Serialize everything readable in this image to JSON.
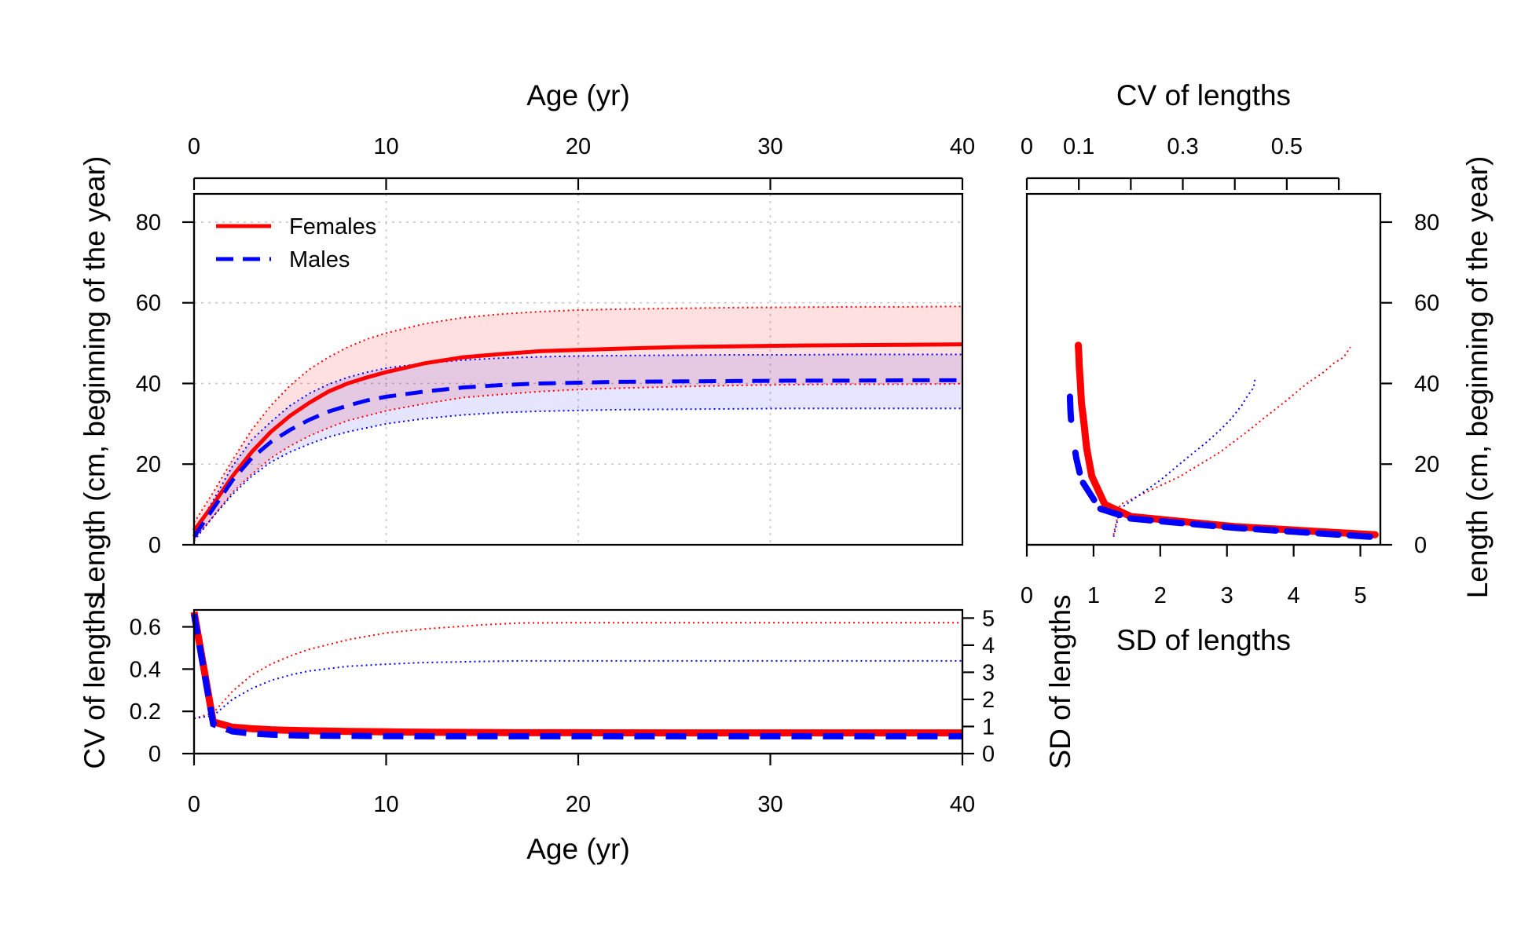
{
  "chart_data": [
    {
      "type": "line",
      "panel": "length-at-age",
      "top_axis_title": "Age (yr)",
      "ylabel": "Length (cm, beginning of the year)",
      "xlim": [
        0,
        40
      ],
      "ylim": [
        0,
        87
      ],
      "xticks": [
        0,
        10,
        20,
        30,
        40
      ],
      "yticks": [
        0,
        20,
        40,
        60,
        80
      ],
      "grid": true,
      "legend_position": "top-left",
      "x": [
        0,
        1,
        2,
        3,
        4,
        5,
        6,
        7,
        8,
        9,
        10,
        12,
        14,
        16,
        18,
        20,
        22,
        25,
        28,
        31,
        34,
        37,
        40
      ],
      "series": [
        {
          "name": "Females",
          "color": "#ff0000",
          "style": "solid",
          "values": [
            3.5,
            10,
            17,
            23,
            28,
            32,
            35.2,
            38,
            40,
            41.5,
            42.8,
            45,
            46.5,
            47.3,
            48,
            48.3,
            48.6,
            49,
            49.2,
            49.4,
            49.5,
            49.6,
            49.7
          ],
          "upper": [
            5.5,
            13,
            21,
            28.5,
            34.5,
            39.5,
            43.5,
            46.5,
            49,
            51,
            52.5,
            54.8,
            56.3,
            57.2,
            57.8,
            58.2,
            58.4,
            58.6,
            58.8,
            58.9,
            59,
            59,
            59.1
          ],
          "lower": [
            1.5,
            7,
            13,
            17.5,
            21.5,
            24.5,
            27,
            29,
            30.8,
            32,
            33.2,
            35,
            36.5,
            37.3,
            38,
            38.5,
            38.8,
            39.2,
            39.5,
            39.7,
            39.8,
            39.8,
            39.9
          ]
        },
        {
          "name": "Males",
          "color": "#0000ff",
          "style": "dashed",
          "values": [
            2,
            9,
            16,
            21.5,
            25.5,
            28.5,
            31,
            33,
            34.5,
            35.8,
            36.7,
            38,
            39,
            39.6,
            40,
            40.2,
            40.4,
            40.5,
            40.6,
            40.7,
            40.7,
            40.8,
            40.8
          ],
          "upper": [
            3,
            11,
            19.5,
            26,
            30.5,
            34.5,
            37.5,
            39.8,
            41.5,
            42.8,
            43.8,
            45,
            45.8,
            46.3,
            46.6,
            46.8,
            46.9,
            47,
            47.1,
            47.1,
            47.2,
            47.2,
            47.2
          ],
          "lower": [
            1,
            7,
            12.5,
            17,
            20.5,
            23,
            25,
            26.7,
            28,
            29,
            30,
            31.3,
            32.2,
            32.8,
            33.1,
            33.3,
            33.5,
            33.6,
            33.7,
            33.8,
            33.8,
            33.8,
            33.8
          ]
        }
      ]
    },
    {
      "type": "line",
      "panel": "cv-sd-at-age",
      "xlabel": "Age (yr)",
      "ylabel": "CV of lengths",
      "y2label": "SD of lengths",
      "xlim": [
        0,
        40
      ],
      "ylim": [
        0,
        0.68
      ],
      "y2lim": [
        0,
        5.3
      ],
      "xticks": [
        0,
        10,
        20,
        30,
        40
      ],
      "yticks": [
        0,
        0.2,
        0.4,
        0.6
      ],
      "y2ticks": [
        0,
        1,
        2,
        3,
        4,
        5
      ],
      "x": [
        0,
        1,
        2,
        3,
        4,
        5,
        6,
        8,
        10,
        12,
        15,
        17,
        20,
        25,
        30,
        35,
        40
      ],
      "series": [
        {
          "name": "Females",
          "color": "#ff0000",
          "cv": [
            0.67,
            0.15,
            0.125,
            0.118,
            0.113,
            0.11,
            0.108,
            0.105,
            0.103,
            0.101,
            0.1,
            0.099,
            0.099,
            0.098,
            0.098,
            0.098,
            0.098
          ],
          "sd": [
            1.3,
            1.5,
            2.3,
            2.9,
            3.3,
            3.6,
            3.85,
            4.2,
            4.45,
            4.6,
            4.75,
            4.82,
            4.83,
            4.83,
            4.83,
            4.83,
            4.83
          ]
        },
        {
          "name": "Males",
          "color": "#0000ff",
          "cv": [
            0.66,
            0.14,
            0.105,
            0.095,
            0.09,
            0.087,
            0.085,
            0.084,
            0.083,
            0.082,
            0.082,
            0.082,
            0.082,
            0.082,
            0.082,
            0.082,
            0.082
          ],
          "sd": [
            1.3,
            1.4,
            2.0,
            2.4,
            2.7,
            2.9,
            3.05,
            3.22,
            3.3,
            3.36,
            3.4,
            3.42,
            3.42,
            3.42,
            3.42,
            3.42,
            3.42
          ]
        }
      ]
    },
    {
      "type": "line",
      "panel": "length-vs-variability",
      "top_axis_title": "CV of lengths",
      "xlabel": "SD of lengths",
      "ylabel": "Length (cm, beginning of the year)",
      "xlim": [
        0,
        5.3
      ],
      "ylim": [
        0,
        87
      ],
      "xticks": [
        0,
        1,
        2,
        3,
        4,
        5
      ],
      "top_ticks": [
        0,
        0.1,
        0.3,
        0.5
      ],
      "top_tick_marks": [
        0,
        0.1,
        0.2,
        0.3,
        0.4,
        0.5,
        0.6
      ],
      "top_xlim": [
        0,
        0.68
      ],
      "yticks": [
        0,
        20,
        40,
        60,
        80
      ],
      "series": [
        {
          "name": "Females",
          "color": "#ff0000",
          "cv_points": [
            [
              0.67,
              2.5
            ],
            [
              0.4,
              4.5
            ],
            [
              0.2,
              7
            ],
            [
              0.15,
              10
            ],
            [
              0.125,
              17
            ],
            [
              0.115,
              24
            ],
            [
              0.11,
              30
            ],
            [
              0.105,
              35.2
            ],
            [
              0.103,
              40
            ],
            [
              0.101,
              44
            ],
            [
              0.1,
              47
            ],
            [
              0.099,
              49.5
            ]
          ],
          "sd_points": [
            [
              1.3,
              2.5
            ],
            [
              1.4,
              10
            ],
            [
              2.3,
              17
            ],
            [
              2.9,
              23
            ],
            [
              3.3,
              28
            ],
            [
              3.6,
              32
            ],
            [
              3.85,
              35.2
            ],
            [
              4.2,
              40
            ],
            [
              4.45,
              42.8
            ],
            [
              4.6,
              45
            ],
            [
              4.75,
              46.5
            ],
            [
              4.85,
              49
            ]
          ]
        },
        {
          "name": "Males",
          "color": "#0000ff",
          "cv_points": [
            [
              0.66,
              2
            ],
            [
              0.4,
              4.2
            ],
            [
              0.2,
              6.5
            ],
            [
              0.14,
              9
            ],
            [
              0.105,
              16
            ],
            [
              0.095,
              21.5
            ],
            [
              0.09,
              25.5
            ]
          ],
          "cv_points_upper": [
            [
              0.085,
              31
            ],
            [
              0.084,
              33
            ],
            [
              0.083,
              36.7
            ]
          ],
          "sd_points": [
            [
              1.3,
              2
            ],
            [
              1.4,
              9
            ],
            [
              2.0,
              16
            ],
            [
              2.4,
              21.5
            ],
            [
              2.7,
              25.5
            ],
            [
              2.9,
              28.5
            ],
            [
              3.05,
              31
            ],
            [
              3.22,
              34.5
            ],
            [
              3.3,
              36.7
            ],
            [
              3.4,
              39
            ],
            [
              3.42,
              41
            ]
          ]
        }
      ]
    }
  ]
}
